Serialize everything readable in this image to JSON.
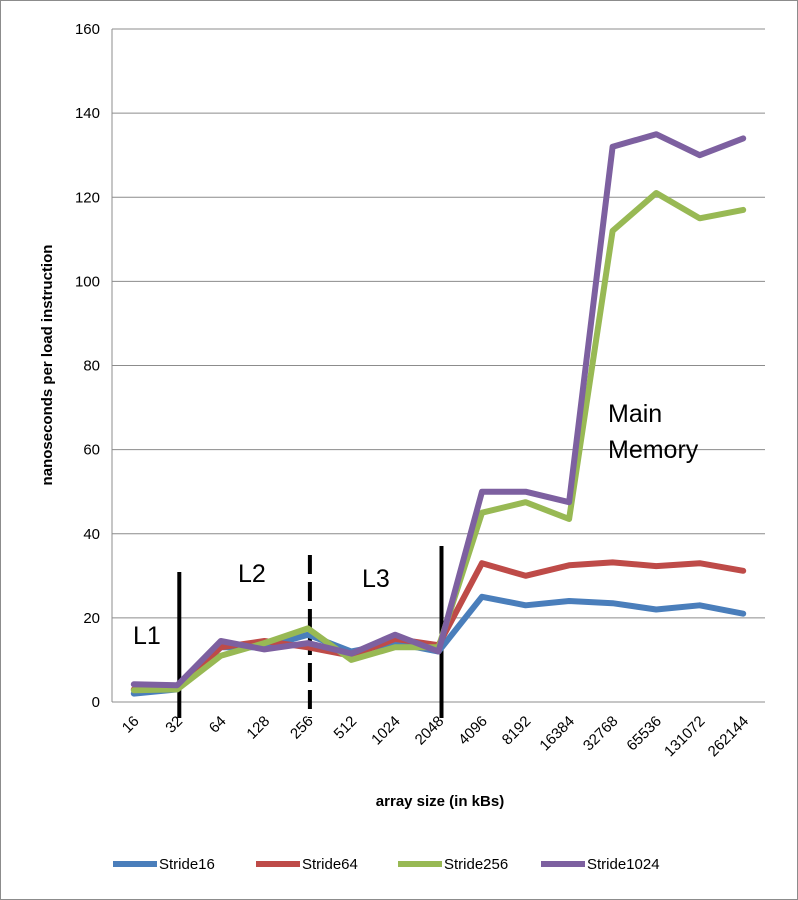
{
  "chart_data": {
    "type": "line",
    "title": "",
    "xlabel": "array size (in kBs)",
    "ylabel": "nanoseconds per load instruction",
    "ylim": [
      0,
      160
    ],
    "yticks": [
      0,
      20,
      40,
      60,
      80,
      100,
      120,
      140,
      160
    ],
    "grid": "horizontal",
    "legend_position": "bottom",
    "categories": [
      "16",
      "32",
      "64",
      "128",
      "256",
      "512",
      "1024",
      "2048",
      "4096",
      "8192",
      "16384",
      "32768",
      "65536",
      "131072",
      "262144"
    ],
    "series": [
      {
        "name": "Stride16",
        "color": "#4a7ebb",
        "values": [
          2,
          3,
          13,
          13,
          16,
          12,
          14,
          12,
          25,
          23,
          24,
          23.5,
          22,
          23,
          21
        ]
      },
      {
        "name": "Stride64",
        "color": "#be4b48",
        "values": [
          3,
          3.5,
          13,
          14.5,
          13,
          11,
          15,
          13.5,
          33,
          30,
          32.5,
          33.2,
          32.3,
          33,
          31.2
        ]
      },
      {
        "name": "Stride256",
        "color": "#98b954",
        "values": [
          2.8,
          3,
          11,
          14,
          17.5,
          10,
          13,
          13,
          45,
          47.5,
          43.5,
          112,
          121,
          115,
          117
        ]
      },
      {
        "name": "Stride1024",
        "color": "#7d60a0",
        "values": [
          4.2,
          4,
          14.5,
          12.5,
          14,
          11.5,
          16,
          12,
          50,
          50,
          47.5,
          132,
          135,
          130,
          134
        ]
      }
    ],
    "annotations": [
      {
        "text": "L1"
      },
      {
        "text": "L2"
      },
      {
        "text": "L3"
      },
      {
        "text": "Main"
      },
      {
        "text": "Memory"
      }
    ],
    "boundaries": [
      {
        "after_category": "32",
        "style": "solid"
      },
      {
        "after_category": "256",
        "style": "dashed"
      },
      {
        "after_category": "2048",
        "style": "solid"
      }
    ]
  }
}
